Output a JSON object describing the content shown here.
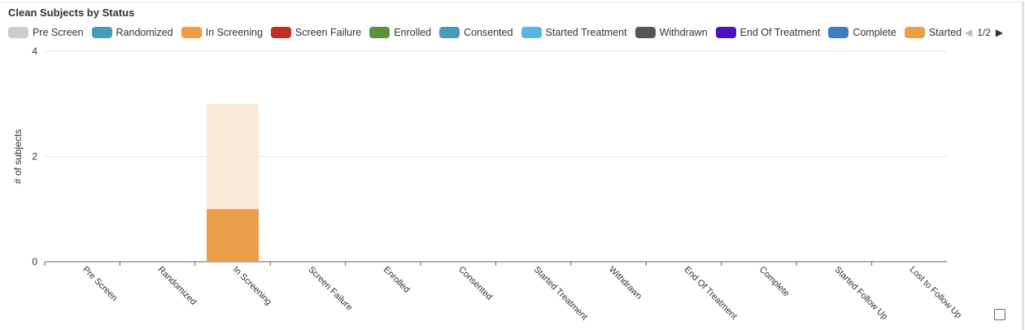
{
  "title": "Clean Subjects by Status",
  "legend": [
    {
      "label": "Pre Screen",
      "color": "#cccccc"
    },
    {
      "label": "Randomized",
      "color": "#4a9bb8"
    },
    {
      "label": "In Screening",
      "color": "#eb9e47"
    },
    {
      "label": "Screen Failure",
      "color": "#c0311f"
    },
    {
      "label": "Enrolled",
      "color": "#5c8f3e"
    },
    {
      "label": "Consented",
      "color": "#4a9bb8"
    },
    {
      "label": "Started Treatment",
      "color": "#56b8e2"
    },
    {
      "label": "Withdrawn",
      "color": "#555555"
    },
    {
      "label": "End Of Treatment",
      "color": "#4a12c0"
    },
    {
      "label": "Complete",
      "color": "#3a80bf"
    },
    {
      "label": "Started Follow Up",
      "color": "#eb9e47"
    }
  ],
  "pager": {
    "text": "1/2",
    "prev_icon": "triangle-left-icon",
    "next_icon": "triangle-right-icon"
  },
  "chart_data": {
    "type": "bar",
    "stacked": true,
    "categories": [
      "Pre Screen",
      "Randomized",
      "In Screening",
      "Screen Failure",
      "Enrolled",
      "Consented",
      "Started Treatment",
      "Withdrawn",
      "End Of Treatment",
      "Complete",
      "Started Follow Up",
      "Lost to Follow Up"
    ],
    "series": [
      {
        "values": [
          0,
          0,
          1,
          0,
          0,
          0,
          0,
          0,
          0,
          0,
          0,
          0
        ],
        "color": "#eb9e47"
      },
      {
        "values": [
          0,
          0,
          2,
          0,
          0,
          0,
          0,
          0,
          0,
          0,
          0,
          0
        ],
        "color": "#fce9d6"
      }
    ],
    "ylabel": "# of subjects",
    "ylim": [
      0,
      4
    ],
    "yticks": [
      0,
      2,
      4
    ],
    "grid": true
  }
}
